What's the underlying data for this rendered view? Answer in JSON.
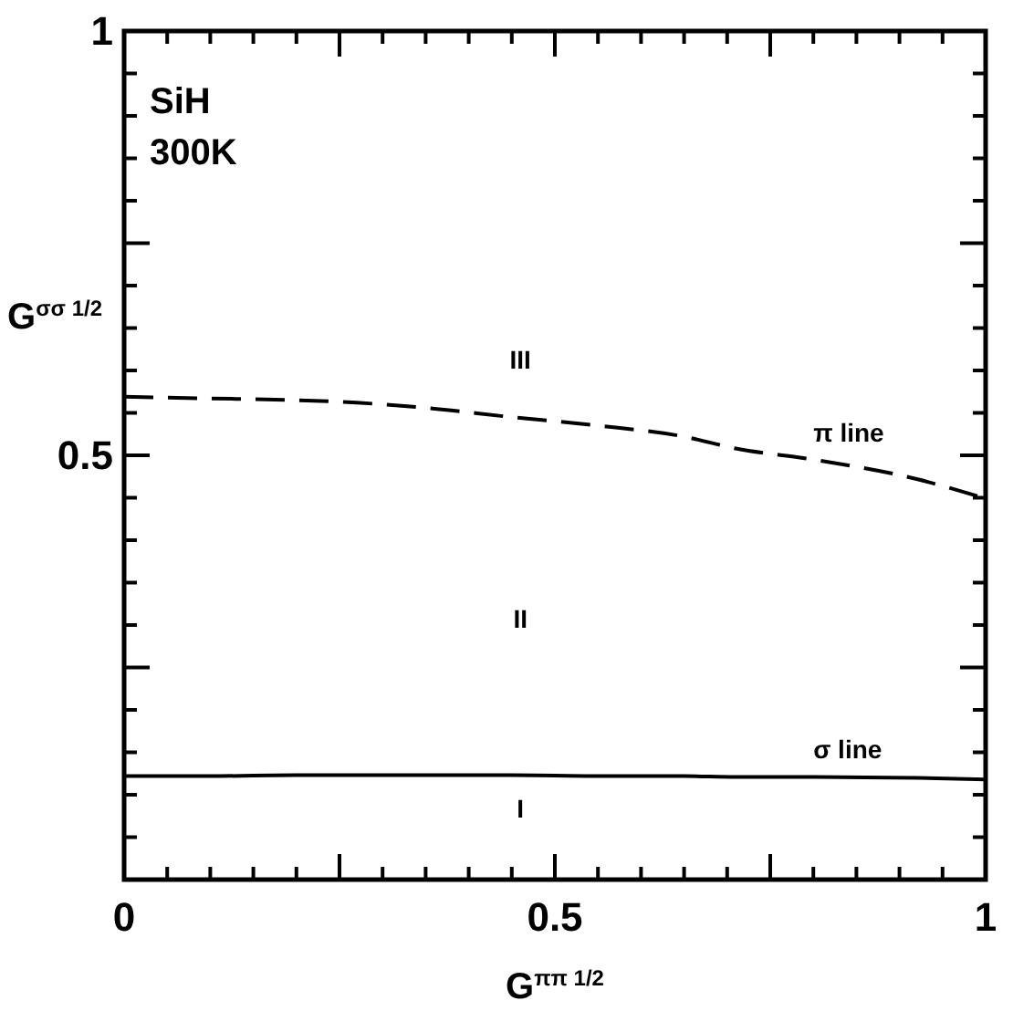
{
  "chart_data": {
    "type": "line",
    "xlabel": "G$^{ππ 1/2}$",
    "ylabel": "G$^{σσ 1/2}$",
    "x": [
      0,
      0.1,
      0.2,
      0.27,
      0.35,
      0.45,
      0.55,
      0.65,
      0.71,
      0.8,
      0.92,
      1
    ],
    "series": [
      {
        "name": "π line",
        "color": "#000000",
        "line_style": "dashed",
        "values": [
          0.569,
          0.567,
          0.565,
          0.562,
          0.556,
          0.545,
          0.535,
          0.522,
          0.508,
          0.495,
          0.472,
          0.449
        ]
      },
      {
        "name": "σ line",
        "color": "#000000",
        "line_style": "solid",
        "values": [
          0.122,
          0.122,
          0.123,
          0.123,
          0.123,
          0.123,
          0.122,
          0.122,
          0.121,
          0.121,
          0.12,
          0.118
        ]
      }
    ],
    "xlim": [
      0,
      1
    ],
    "ylim": [
      0,
      1
    ],
    "xticks": [
      0,
      {
        "value": 0.05,
        "label": null
      },
      {
        "value": 0.1,
        "label": null
      },
      {
        "value": 0.15,
        "label": null
      },
      {
        "value": 0.2,
        "label": null
      },
      {
        "value": 0.25,
        "label": null
      },
      {
        "value": 0.3,
        "label": null
      },
      {
        "value": 0.35,
        "label": null
      },
      {
        "value": 0.4,
        "label": null
      },
      {
        "value": 0.45,
        "label": null
      },
      0.5,
      {
        "value": 0.55,
        "label": null
      },
      {
        "value": 0.6,
        "label": null
      },
      {
        "value": 0.65,
        "label": null
      },
      {
        "value": 0.7,
        "label": null
      },
      {
        "value": 0.75,
        "label": null
      },
      {
        "value": 0.8,
        "label": null
      },
      {
        "value": 0.85,
        "label": null
      },
      {
        "value": 0.9,
        "label": null
      },
      {
        "value": 0.95,
        "label": null
      },
      1
    ],
    "yticks": [
      {
        "value": 0,
        "label": null
      },
      {
        "value": 0.05,
        "label": null
      },
      {
        "value": 0.1,
        "label": null
      },
      {
        "value": 0.15,
        "label": null
      },
      {
        "value": 0.2,
        "label": null
      },
      {
        "value": 0.25,
        "label": null
      },
      {
        "value": 0.3,
        "label": null
      },
      {
        "value": 0.35,
        "label": null
      },
      {
        "value": 0.4,
        "label": null
      },
      {
        "value": 0.45,
        "label": null
      },
      0.5,
      {
        "value": 0.55,
        "label": null
      },
      {
        "value": 0.6,
        "label": null
      },
      {
        "value": 0.65,
        "label": null
      },
      {
        "value": 0.7,
        "label": null
      },
      {
        "value": 0.75,
        "label": null
      },
      {
        "value": 0.8,
        "label": null
      },
      {
        "value": 0.85,
        "label": null
      },
      {
        "value": 0.9,
        "label": null
      },
      {
        "value": 0.95,
        "label": null
      },
      1
    ],
    "marker": "none",
    "grid": false,
    "annotations": [
      "SiH",
      "300K",
      "III",
      "II",
      "I"
    ]
  }
}
